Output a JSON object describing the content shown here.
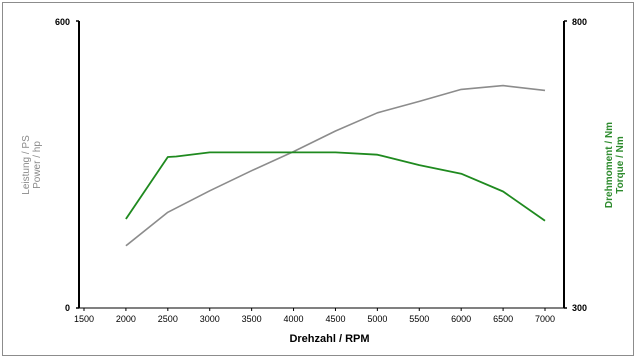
{
  "chart_data": {
    "type": "line",
    "xlabel": "Drehzahl / RPM",
    "x_ticks": [
      1500,
      2000,
      2500,
      3000,
      3500,
      4000,
      4500,
      5000,
      5500,
      6000,
      6500,
      7000
    ],
    "xlim": [
      1500,
      7000
    ],
    "y_left": {
      "label_lines": [
        "Leistung / PS",
        "Power / hp"
      ],
      "ylim": [
        0,
        600
      ],
      "tick_labels": [
        "0",
        "600"
      ]
    },
    "y_right": {
      "label_lines": [
        "Drehmoment / Nm",
        "Torque / Nm"
      ],
      "ylim": [
        300,
        800
      ],
      "tick_labels": [
        "300",
        "800"
      ]
    },
    "series": [
      {
        "axis": "left",
        "color": "#8c8c8c",
        "x": [
          2000,
          2500,
          3000,
          3500,
          4000,
          4500,
          5000,
          5500,
          6000,
          6500,
          7000
        ],
        "y": [
          130,
          200,
          245,
          287,
          327,
          370,
          408,
          432,
          457,
          465,
          455
        ]
      },
      {
        "axis": "right",
        "color": "#1f8a1f",
        "x": [
          2000,
          2500,
          2600,
          3000,
          3500,
          4000,
          4500,
          5000,
          5500,
          6000,
          6500,
          7000
        ],
        "y": [
          455,
          563,
          564,
          571,
          571,
          571,
          571,
          567,
          549,
          534,
          503,
          452
        ]
      }
    ]
  }
}
